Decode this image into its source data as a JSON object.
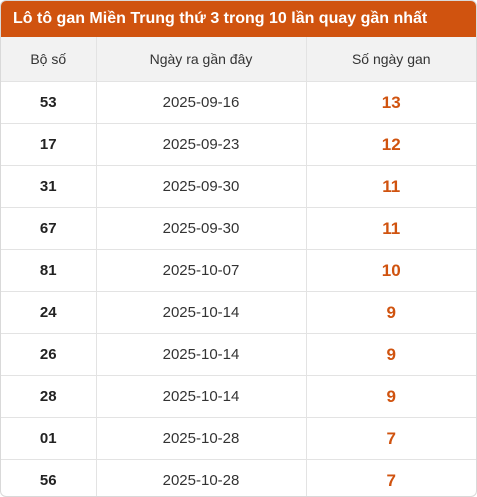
{
  "title": "Lô tô gan Miền Trung thứ 3 trong 10 lần quay gần nhất",
  "colors": {
    "accent": "#d0530f",
    "header_bg": "#f2f2f2"
  },
  "headers": {
    "number": "Bộ số",
    "last_date": "Ngày ra gần đây",
    "days": "Số ngày gan"
  },
  "rows": [
    {
      "number": "53",
      "date": "2025-09-16",
      "days": "13"
    },
    {
      "number": "17",
      "date": "2025-09-23",
      "days": "12"
    },
    {
      "number": "31",
      "date": "2025-09-30",
      "days": "11"
    },
    {
      "number": "67",
      "date": "2025-09-30",
      "days": "11"
    },
    {
      "number": "81",
      "date": "2025-10-07",
      "days": "10"
    },
    {
      "number": "24",
      "date": "2025-10-14",
      "days": "9"
    },
    {
      "number": "26",
      "date": "2025-10-14",
      "days": "9"
    },
    {
      "number": "28",
      "date": "2025-10-14",
      "days": "9"
    },
    {
      "number": "01",
      "date": "2025-10-28",
      "days": "7"
    },
    {
      "number": "56",
      "date": "2025-10-28",
      "days": "7"
    }
  ]
}
